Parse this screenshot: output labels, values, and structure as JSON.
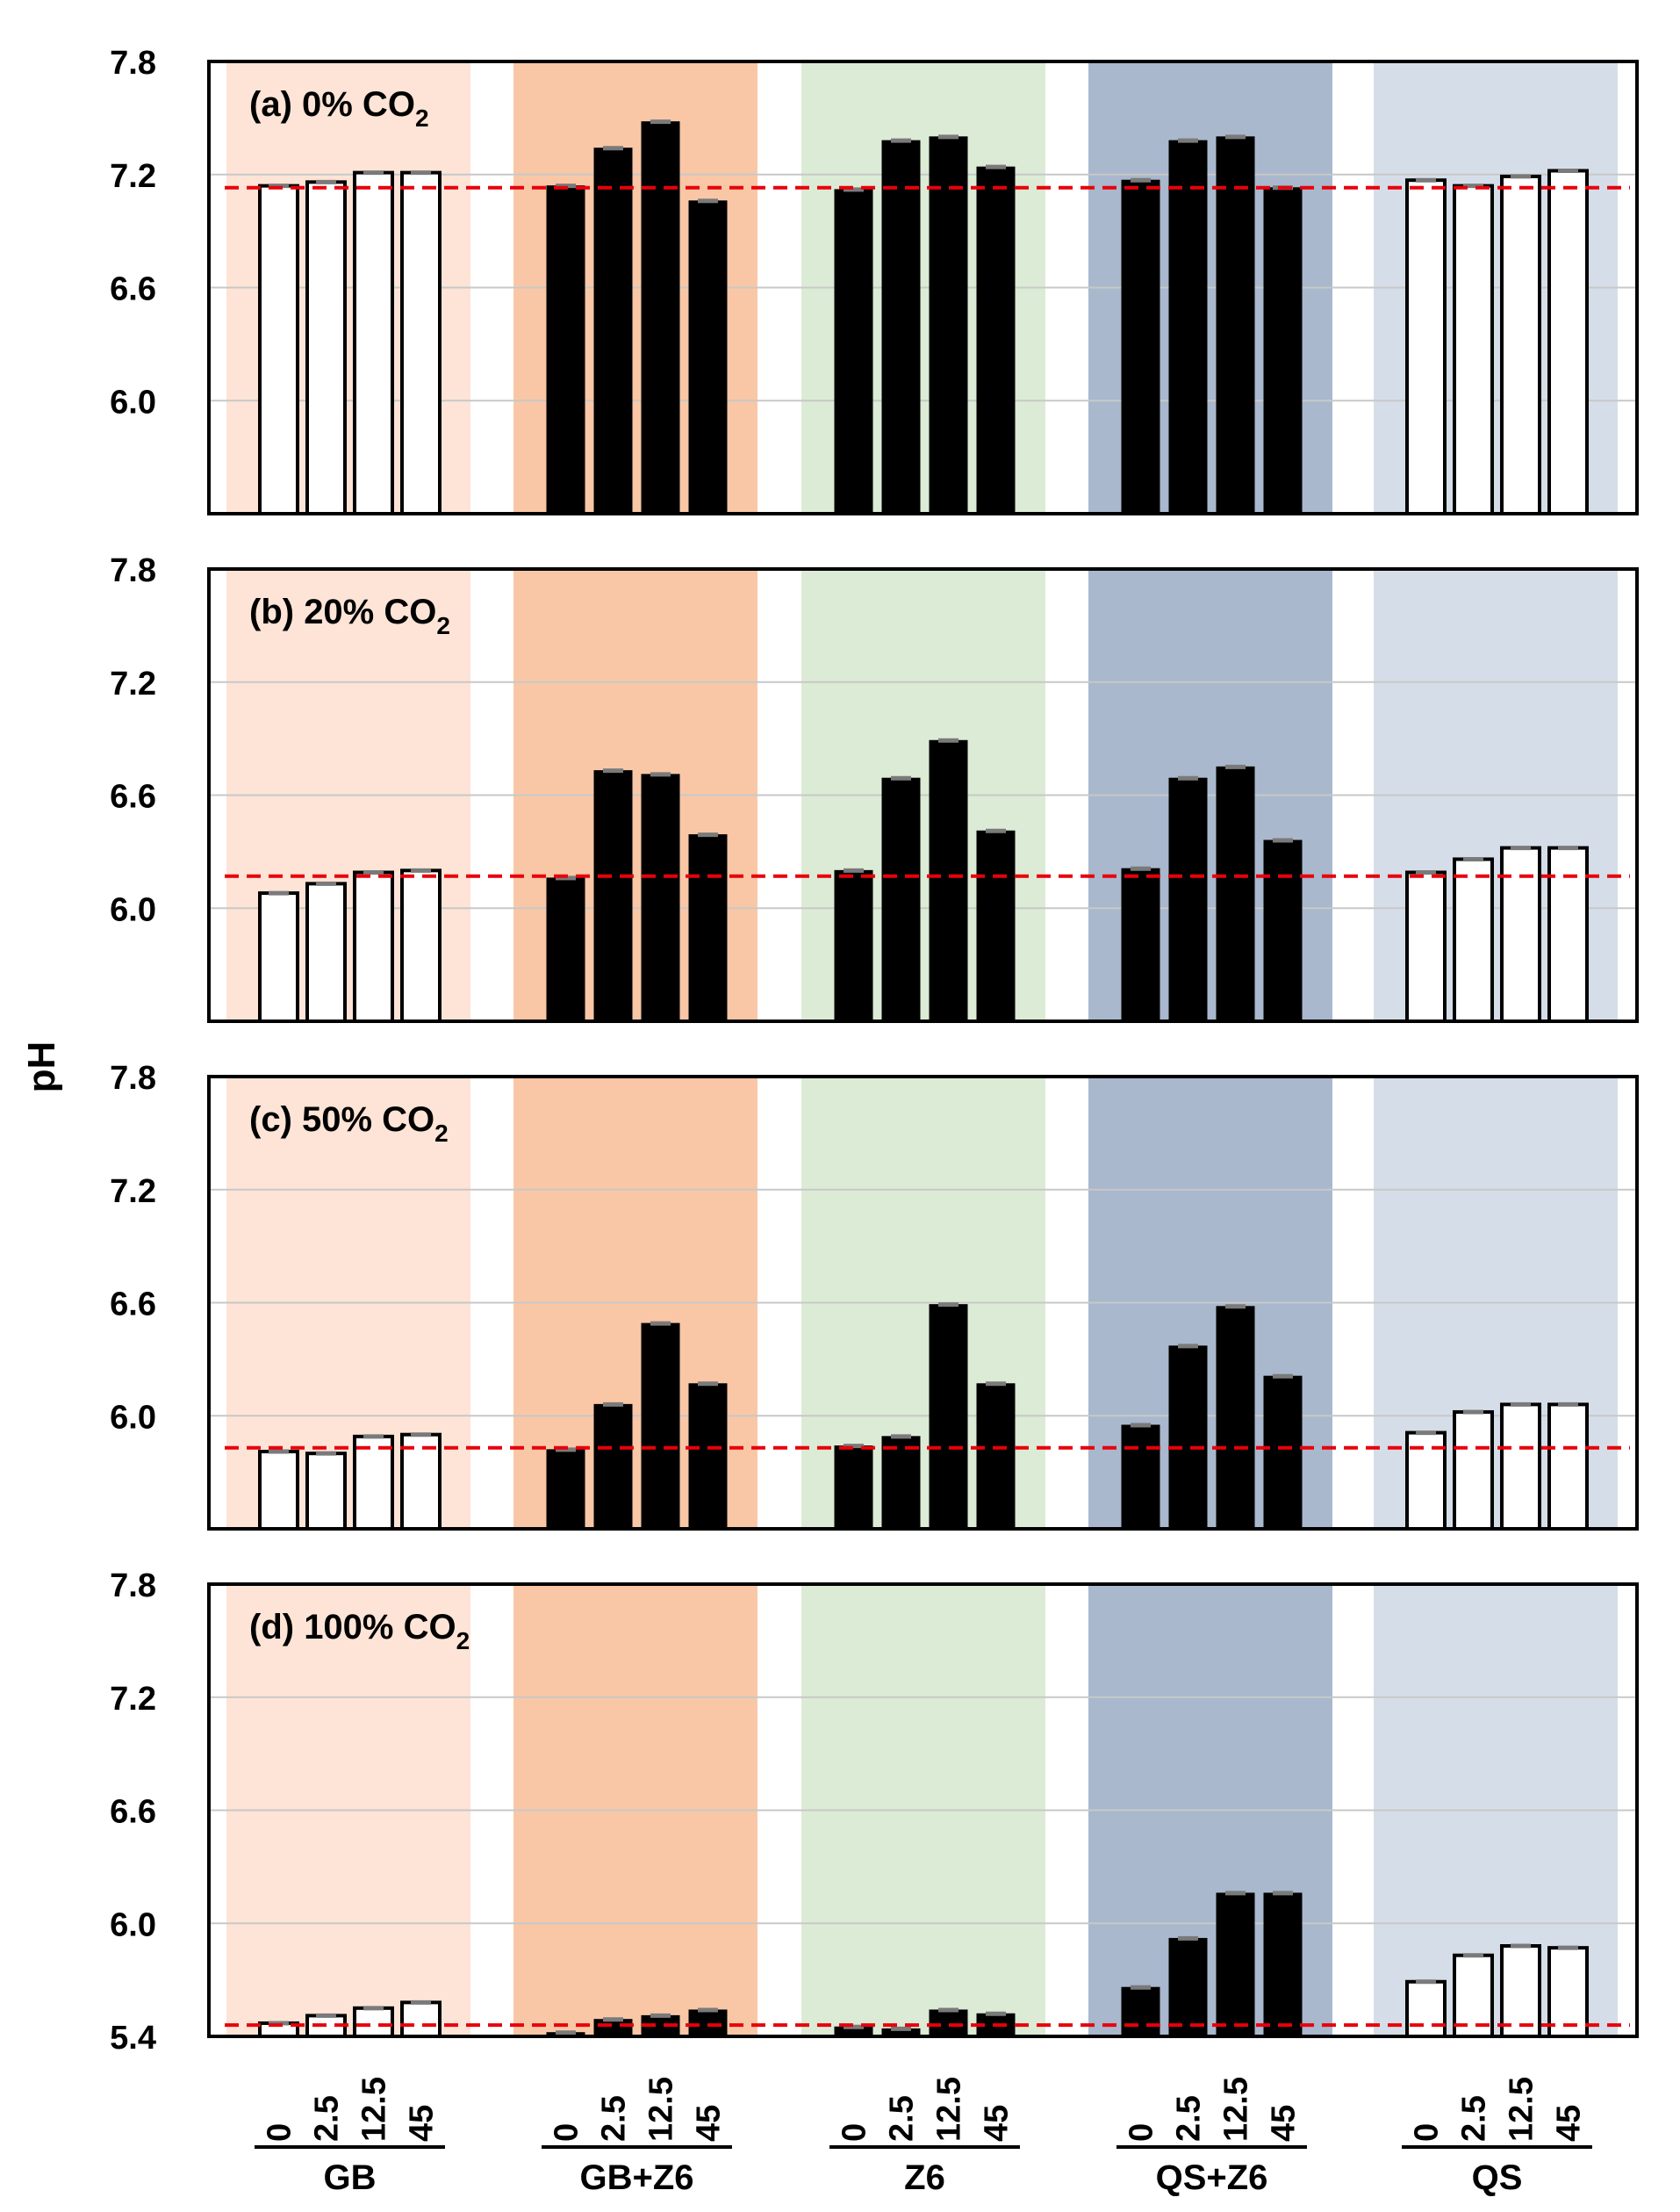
{
  "chart_data": {
    "type": "bar",
    "ylabel": "pH",
    "ylim": [
      5.4,
      7.8
    ],
    "yticks": [
      "5.4",
      "6.0",
      "6.6",
      "7.2",
      "7.8"
    ],
    "doses": [
      "0",
      "2.5",
      "12.5",
      "45"
    ],
    "groups": [
      {
        "name": "GB",
        "band_color": "#fde4d6",
        "bar_fill": "white"
      },
      {
        "name": "GB+Z6",
        "band_color": "#f9c7a6",
        "bar_fill": "black"
      },
      {
        "name": "Z6",
        "band_color": "#dcebd5",
        "bar_fill": "black"
      },
      {
        "name": "QS+Z6",
        "band_color": "#a9b8cd",
        "bar_fill": "black"
      },
      {
        "name": "QS",
        "band_color": "#d5dee8",
        "bar_fill": "white"
      }
    ],
    "panels": [
      {
        "label_prefix": "(a) 0% CO",
        "label_sub": "2",
        "reference_ph": 7.13,
        "series": [
          {
            "group": "GB",
            "values": [
              7.14,
              7.16,
              7.21,
              7.21
            ]
          },
          {
            "group": "GB+Z6",
            "values": [
              7.14,
              7.34,
              7.48,
              7.06
            ]
          },
          {
            "group": "Z6",
            "values": [
              7.12,
              7.38,
              7.4,
              7.24
            ]
          },
          {
            "group": "QS+Z6",
            "values": [
              7.17,
              7.38,
              7.4,
              7.13
            ]
          },
          {
            "group": "QS",
            "values": [
              7.17,
              7.14,
              7.19,
              7.22
            ]
          }
        ]
      },
      {
        "label_prefix": "(b) 20% CO",
        "label_sub": "2",
        "reference_ph": 6.17,
        "series": [
          {
            "group": "GB",
            "values": [
              6.08,
              6.13,
              6.19,
              6.2
            ]
          },
          {
            "group": "GB+Z6",
            "values": [
              6.16,
              6.73,
              6.71,
              6.39
            ]
          },
          {
            "group": "Z6",
            "values": [
              6.2,
              6.69,
              6.89,
              6.41
            ]
          },
          {
            "group": "QS+Z6",
            "values": [
              6.21,
              6.69,
              6.75,
              6.36
            ]
          },
          {
            "group": "QS",
            "values": [
              6.19,
              6.26,
              6.32,
              6.32
            ]
          }
        ]
      },
      {
        "label_prefix": "(c) 50% CO",
        "label_sub": "2",
        "reference_ph": 5.83,
        "series": [
          {
            "group": "GB",
            "values": [
              5.81,
              5.8,
              5.89,
              5.9
            ]
          },
          {
            "group": "GB+Z6",
            "values": [
              5.82,
              6.06,
              6.49,
              6.17
            ]
          },
          {
            "group": "Z6",
            "values": [
              5.84,
              5.89,
              6.59,
              6.17
            ]
          },
          {
            "group": "QS+Z6",
            "values": [
              5.95,
              6.37,
              6.58,
              6.21
            ]
          },
          {
            "group": "QS",
            "values": [
              5.91,
              6.02,
              6.06,
              6.06
            ]
          }
        ]
      },
      {
        "label_prefix": "(d) 100% CO",
        "label_sub": "2",
        "reference_ph": 5.46,
        "series": [
          {
            "group": "GB",
            "values": [
              5.47,
              5.51,
              5.55,
              5.58
            ]
          },
          {
            "group": "GB+Z6",
            "values": [
              5.42,
              5.49,
              5.51,
              5.54
            ]
          },
          {
            "group": "Z6",
            "values": [
              5.45,
              5.44,
              5.54,
              5.52
            ]
          },
          {
            "group": "QS+Z6",
            "values": [
              5.66,
              5.92,
              6.16,
              6.16
            ]
          },
          {
            "group": "QS",
            "values": [
              5.69,
              5.83,
              5.88,
              5.87
            ]
          }
        ]
      }
    ],
    "colors": {
      "reference_line": "#e8000b",
      "gridline": "#c8c8c8",
      "error_cap": "#7a7a7a"
    }
  }
}
